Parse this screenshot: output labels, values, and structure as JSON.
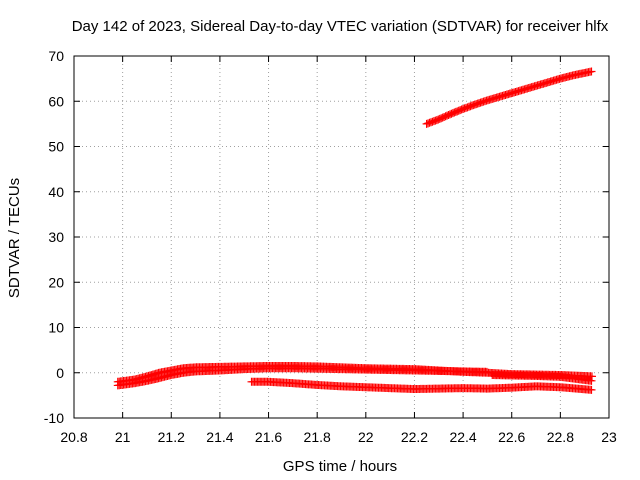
{
  "chart_data": {
    "type": "scatter",
    "title": "Day 142 of 2023, Sidereal Day-to-day VTEC variation (SDTVAR) for receiver hlfx",
    "xlabel": "GPS time / hours",
    "ylabel": "SDTVAR / TECUs",
    "xlim": [
      20.8,
      23.0
    ],
    "ylim": [
      -10,
      70
    ],
    "xticks": [
      20.8,
      21.0,
      21.2,
      21.4,
      21.6,
      21.8,
      22.0,
      22.2,
      22.4,
      22.6,
      22.8,
      23.0
    ],
    "xtick_labels": [
      "20.8",
      "21",
      "21.2",
      "21.4",
      "21.6",
      "21.8",
      "22",
      "22.2",
      "22.4",
      "22.6",
      "22.8",
      "23"
    ],
    "yticks": [
      -10,
      0,
      10,
      20,
      30,
      40,
      50,
      60,
      70
    ],
    "ytick_labels": [
      "-10",
      "0",
      "10",
      "20",
      "30",
      "40",
      "50",
      "60",
      "70"
    ],
    "grid": true,
    "legend": "none",
    "marker": "+",
    "color": "#ff0000",
    "series": [
      {
        "name": "track-1",
        "x": [
          20.98,
          21.05,
          21.1,
          21.15,
          21.2,
          21.25,
          21.3,
          21.4,
          21.5,
          21.6,
          21.7,
          21.8,
          21.9,
          22.0,
          22.1,
          22.2,
          22.3,
          22.4,
          22.5,
          22.6,
          22.7,
          22.8,
          22.93
        ],
        "y": [
          -2.0,
          -1.5,
          -0.8,
          0.0,
          0.5,
          1.0,
          1.2,
          1.3,
          1.4,
          1.5,
          1.5,
          1.4,
          1.2,
          1.0,
          0.9,
          0.8,
          0.5,
          0.2,
          0.0,
          -0.3,
          -0.4,
          -0.5,
          -0.8
        ]
      },
      {
        "name": "track-2",
        "x": [
          20.98,
          21.05,
          21.1,
          21.15,
          21.2,
          21.25,
          21.3,
          21.4,
          21.5,
          21.6,
          21.7,
          21.8,
          21.9,
          22.0,
          22.1,
          22.2,
          22.3,
          22.4,
          22.5
        ],
        "y": [
          -2.8,
          -2.3,
          -1.8,
          -1.2,
          -0.5,
          0.0,
          0.3,
          0.5,
          0.8,
          1.0,
          1.0,
          0.9,
          0.8,
          0.7,
          0.6,
          0.5,
          0.4,
          0.3,
          0.2
        ]
      },
      {
        "name": "track-3",
        "x": [
          22.52,
          22.6,
          22.7,
          22.8,
          22.93
        ],
        "y": [
          -0.5,
          -0.6,
          -0.7,
          -0.9,
          -1.8
        ]
      },
      {
        "name": "track-4",
        "x": [
          21.53,
          21.6,
          21.7,
          21.8,
          21.9,
          22.0,
          22.1,
          22.2,
          22.3,
          22.4,
          22.5,
          22.6,
          22.7,
          22.8,
          22.93
        ],
        "y": [
          -2.0,
          -2.0,
          -2.3,
          -2.7,
          -3.0,
          -3.2,
          -3.4,
          -3.6,
          -3.5,
          -3.4,
          -3.5,
          -3.3,
          -3.0,
          -3.2,
          -3.8
        ]
      },
      {
        "name": "track-5",
        "x": [
          22.25,
          22.3,
          22.35,
          22.4,
          22.45,
          22.5,
          22.55,
          22.6,
          22.65,
          22.7,
          22.75,
          22.8,
          22.85,
          22.93
        ],
        "y": [
          55.0,
          56.0,
          57.2,
          58.3,
          59.3,
          60.2,
          61.0,
          61.8,
          62.6,
          63.4,
          64.2,
          65.0,
          65.7,
          66.6
        ]
      }
    ]
  }
}
